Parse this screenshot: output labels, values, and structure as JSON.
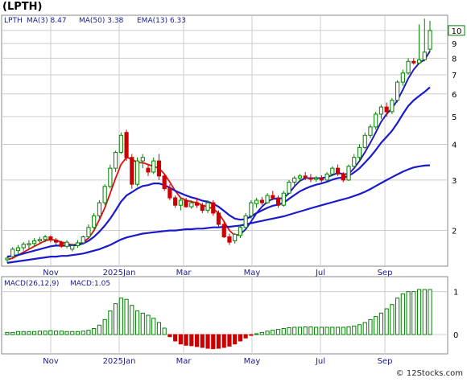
{
  "header": {
    "title": "(LPTH)"
  },
  "price_legend": {
    "symbol": "LPTH",
    "ma3": "MA(3)  8.47",
    "ma50": "MA(50)  3.38",
    "ema13": "EMA(13)  6.33"
  },
  "macd_legend": {
    "label": "MACD(26,12,9)",
    "value": "MACD:1.05"
  },
  "footer": {
    "credit": "© 12Stocks.com"
  },
  "colors": {
    "up": "#008000",
    "down": "#cc0000",
    "ma": "#1a1acc",
    "ema": "#dd1111",
    "macd_bar": "#008000",
    "macd_neg": "#cc0000",
    "grid": "#cccccc",
    "axis_text": "#1a1a8c"
  },
  "chart_data": [
    {
      "type": "candlestick",
      "ylabel_scale": "log",
      "ylim": [
        1.5,
        11.3
      ],
      "yticks": [
        2,
        3,
        4,
        5,
        6,
        7,
        8,
        9,
        10
      ],
      "last_price_label": "10",
      "x_ticks": [
        "Nov",
        "2025Jan",
        "Mar",
        "May",
        "Jul",
        "Sep"
      ],
      "candles": [
        [
          1.58,
          1.62,
          1.54,
          1.6
        ],
        [
          1.62,
          1.75,
          1.6,
          1.72
        ],
        [
          1.7,
          1.78,
          1.65,
          1.74
        ],
        [
          1.74,
          1.82,
          1.7,
          1.79
        ],
        [
          1.78,
          1.85,
          1.72,
          1.8
        ],
        [
          1.8,
          1.88,
          1.76,
          1.84
        ],
        [
          1.84,
          1.9,
          1.8,
          1.86
        ],
        [
          1.86,
          1.93,
          1.82,
          1.9
        ],
        [
          1.9,
          1.92,
          1.82,
          1.85
        ],
        [
          1.85,
          1.88,
          1.78,
          1.82
        ],
        [
          1.82,
          1.84,
          1.74,
          1.76
        ],
        [
          1.76,
          1.85,
          1.73,
          1.82
        ],
        [
          1.72,
          1.8,
          1.69,
          1.77
        ],
        [
          1.77,
          1.85,
          1.74,
          1.81
        ],
        [
          1.81,
          1.92,
          1.79,
          1.9
        ],
        [
          1.9,
          2.1,
          1.88,
          2.05
        ],
        [
          2.05,
          2.3,
          2.02,
          2.25
        ],
        [
          2.25,
          2.55,
          2.2,
          2.5
        ],
        [
          2.5,
          2.9,
          2.45,
          2.85
        ],
        [
          2.85,
          3.4,
          2.8,
          3.3
        ],
        [
          3.3,
          3.8,
          3.2,
          3.75
        ],
        [
          3.75,
          4.4,
          3.7,
          4.3
        ],
        [
          4.4,
          4.5,
          3.5,
          3.6
        ],
        [
          3.6,
          3.7,
          2.8,
          2.9
        ],
        [
          2.9,
          3.6,
          2.85,
          3.5
        ],
        [
          3.5,
          3.7,
          3.3,
          3.6
        ],
        [
          3.3,
          3.4,
          3.1,
          3.2
        ],
        [
          3.2,
          3.6,
          3.15,
          3.5
        ],
        [
          3.5,
          3.7,
          3.0,
          3.1
        ],
        [
          3.1,
          3.15,
          2.75,
          2.8
        ],
        [
          2.8,
          2.9,
          2.55,
          2.6
        ],
        [
          2.6,
          2.65,
          2.4,
          2.45
        ],
        [
          2.45,
          2.6,
          2.35,
          2.55
        ],
        [
          2.55,
          2.6,
          2.4,
          2.42
        ],
        [
          2.42,
          2.55,
          2.38,
          2.5
        ],
        [
          2.5,
          2.6,
          2.4,
          2.45
        ],
        [
          2.45,
          2.5,
          2.3,
          2.35
        ],
        [
          2.35,
          2.55,
          2.3,
          2.5
        ],
        [
          2.5,
          2.55,
          2.25,
          2.3
        ],
        [
          2.3,
          2.35,
          2.05,
          2.1
        ],
        [
          2.1,
          2.15,
          1.88,
          1.9
        ],
        [
          1.9,
          1.95,
          1.78,
          1.82
        ],
        [
          1.84,
          1.96,
          1.8,
          1.94
        ],
        [
          1.92,
          2.08,
          1.88,
          2.05
        ],
        [
          2.05,
          2.3,
          2.02,
          2.25
        ],
        [
          2.25,
          2.55,
          2.2,
          2.5
        ],
        [
          2.48,
          2.6,
          2.4,
          2.55
        ],
        [
          2.55,
          2.62,
          2.45,
          2.5
        ],
        [
          2.5,
          2.7,
          2.48,
          2.65
        ],
        [
          2.65,
          2.75,
          2.55,
          2.6
        ],
        [
          2.6,
          2.65,
          2.4,
          2.45
        ],
        [
          2.45,
          2.75,
          2.42,
          2.7
        ],
        [
          2.7,
          3.0,
          2.68,
          2.95
        ],
        [
          2.95,
          3.1,
          2.85,
          3.05
        ],
        [
          3.05,
          3.15,
          2.95,
          3.1
        ],
        [
          3.1,
          3.2,
          3.0,
          3.05
        ],
        [
          3.05,
          3.15,
          2.95,
          3.02
        ],
        [
          3.02,
          3.1,
          2.96,
          3.05
        ],
        [
          3.05,
          3.12,
          2.95,
          3.0
        ],
        [
          3.0,
          3.2,
          2.98,
          3.15
        ],
        [
          3.15,
          3.35,
          3.1,
          3.3
        ],
        [
          3.3,
          3.4,
          3.1,
          3.15
        ],
        [
          3.15,
          3.2,
          2.95,
          3.0
        ],
        [
          3.0,
          3.4,
          2.98,
          3.35
        ],
        [
          3.35,
          3.7,
          3.3,
          3.6
        ],
        [
          3.6,
          4.0,
          3.5,
          3.9
        ],
        [
          3.9,
          4.4,
          3.85,
          4.3
        ],
        [
          4.3,
          4.7,
          4.2,
          4.6
        ],
        [
          4.6,
          5.2,
          4.5,
          5.1
        ],
        [
          5.1,
          5.5,
          4.9,
          5.4
        ],
        [
          5.4,
          5.6,
          5.0,
          5.2
        ],
        [
          5.2,
          5.8,
          5.1,
          5.7
        ],
        [
          5.7,
          6.7,
          5.6,
          6.6
        ],
        [
          6.6,
          7.3,
          6.4,
          7.1
        ],
        [
          7.1,
          8.0,
          7.0,
          7.8
        ],
        [
          7.8,
          8.0,
          7.6,
          7.7
        ],
        [
          7.7,
          10.5,
          7.6,
          7.9
        ],
        [
          7.9,
          11.0,
          7.8,
          8.4
        ],
        [
          8.6,
          10.8,
          8.4,
          10.0
        ]
      ],
      "series": [
        {
          "values": [
            1.58,
            1.6,
            1.64,
            1.68,
            1.72,
            1.76,
            1.8,
            1.84,
            1.86,
            1.85,
            1.82,
            1.8,
            1.78,
            1.79,
            1.82,
            1.88,
            2.0,
            2.18,
            2.4,
            2.7,
            3.05,
            3.4,
            3.6,
            3.55,
            3.45,
            3.45,
            3.4,
            3.35,
            3.3,
            3.15,
            2.95,
            2.75,
            2.6,
            2.55,
            2.52,
            2.5,
            2.45,
            2.42,
            2.38,
            2.3,
            2.15,
            2.0,
            1.92,
            1.94,
            2.02,
            2.15,
            2.3,
            2.42,
            2.52,
            2.58,
            2.58,
            2.6,
            2.7,
            2.85,
            2.98,
            3.05,
            3.05,
            3.05,
            3.05,
            3.07,
            3.12,
            3.18,
            3.15,
            3.15,
            3.3,
            3.5,
            3.75,
            4.05,
            4.4,
            4.8,
            5.1,
            5.35,
            5.7,
            6.2,
            6.8,
            7.3,
            7.7,
            7.9,
            8.47
          ]
        },
        {
          "values": [
            1.54,
            1.55,
            1.56,
            1.57,
            1.58,
            1.59,
            1.6,
            1.61,
            1.62,
            1.62,
            1.63,
            1.63,
            1.64,
            1.65,
            1.66,
            1.68,
            1.7,
            1.72,
            1.75,
            1.78,
            1.82,
            1.86,
            1.89,
            1.91,
            1.93,
            1.95,
            1.96,
            1.97,
            1.98,
            1.99,
            2.0,
            2.0,
            2.01,
            2.02,
            2.02,
            2.03,
            2.03,
            2.04,
            2.05,
            2.05,
            2.06,
            2.06,
            2.07,
            2.08,
            2.1,
            2.12,
            2.14,
            2.16,
            2.18,
            2.2,
            2.22,
            2.24,
            2.27,
            2.3,
            2.33,
            2.36,
            2.39,
            2.42,
            2.45,
            2.48,
            2.51,
            2.54,
            2.57,
            2.6,
            2.64,
            2.68,
            2.73,
            2.79,
            2.86,
            2.93,
            3.0,
            3.07,
            3.14,
            3.21,
            3.27,
            3.32,
            3.35,
            3.37,
            3.38
          ]
        },
        {
          "values": [
            1.62,
            1.63,
            1.64,
            1.66,
            1.68,
            1.7,
            1.72,
            1.74,
            1.76,
            1.77,
            1.77,
            1.77,
            1.77,
            1.78,
            1.8,
            1.84,
            1.9,
            1.98,
            2.08,
            2.2,
            2.35,
            2.52,
            2.65,
            2.72,
            2.8,
            2.86,
            2.88,
            2.92,
            2.92,
            2.88,
            2.82,
            2.75,
            2.7,
            2.65,
            2.61,
            2.58,
            2.54,
            2.52,
            2.48,
            2.42,
            2.34,
            2.26,
            2.2,
            2.18,
            2.19,
            2.24,
            2.3,
            2.35,
            2.4,
            2.44,
            2.46,
            2.5,
            2.58,
            2.66,
            2.74,
            2.8,
            2.85,
            2.89,
            2.92,
            2.96,
            3.01,
            3.05,
            3.06,
            3.1,
            3.19,
            3.3,
            3.45,
            3.62,
            3.82,
            4.05,
            4.25,
            4.46,
            4.75,
            5.1,
            5.45,
            5.7,
            5.9,
            6.1,
            6.33
          ]
        }
      ]
    },
    {
      "type": "bar",
      "ylim": [
        -0.45,
        1.35
      ],
      "yticks": [
        0,
        1
      ],
      "x_ticks": [
        "Nov",
        "2025Jan",
        "Mar",
        "May",
        "Jul",
        "Sep"
      ],
      "values": [
        0.05,
        0.05,
        0.07,
        0.07,
        0.07,
        0.07,
        0.08,
        0.08,
        0.09,
        0.08,
        0.08,
        0.07,
        0.07,
        0.07,
        0.08,
        0.1,
        0.14,
        0.22,
        0.35,
        0.55,
        0.72,
        0.85,
        0.82,
        0.68,
        0.55,
        0.5,
        0.45,
        0.38,
        0.28,
        0.15,
        -0.05,
        -0.15,
        -0.22,
        -0.25,
        -0.26,
        -0.28,
        -0.3,
        -0.32,
        -0.33,
        -0.32,
        -0.3,
        -0.27,
        -0.22,
        -0.15,
        -0.08,
        -0.02,
        0.02,
        0.05,
        0.08,
        0.1,
        0.12,
        0.14,
        0.16,
        0.17,
        0.17,
        0.18,
        0.18,
        0.17,
        0.17,
        0.17,
        0.17,
        0.17,
        0.17,
        0.18,
        0.2,
        0.23,
        0.28,
        0.35,
        0.42,
        0.5,
        0.6,
        0.7,
        0.85,
        0.95,
        1.0,
        1.0,
        1.05,
        1.05,
        1.05
      ]
    }
  ]
}
